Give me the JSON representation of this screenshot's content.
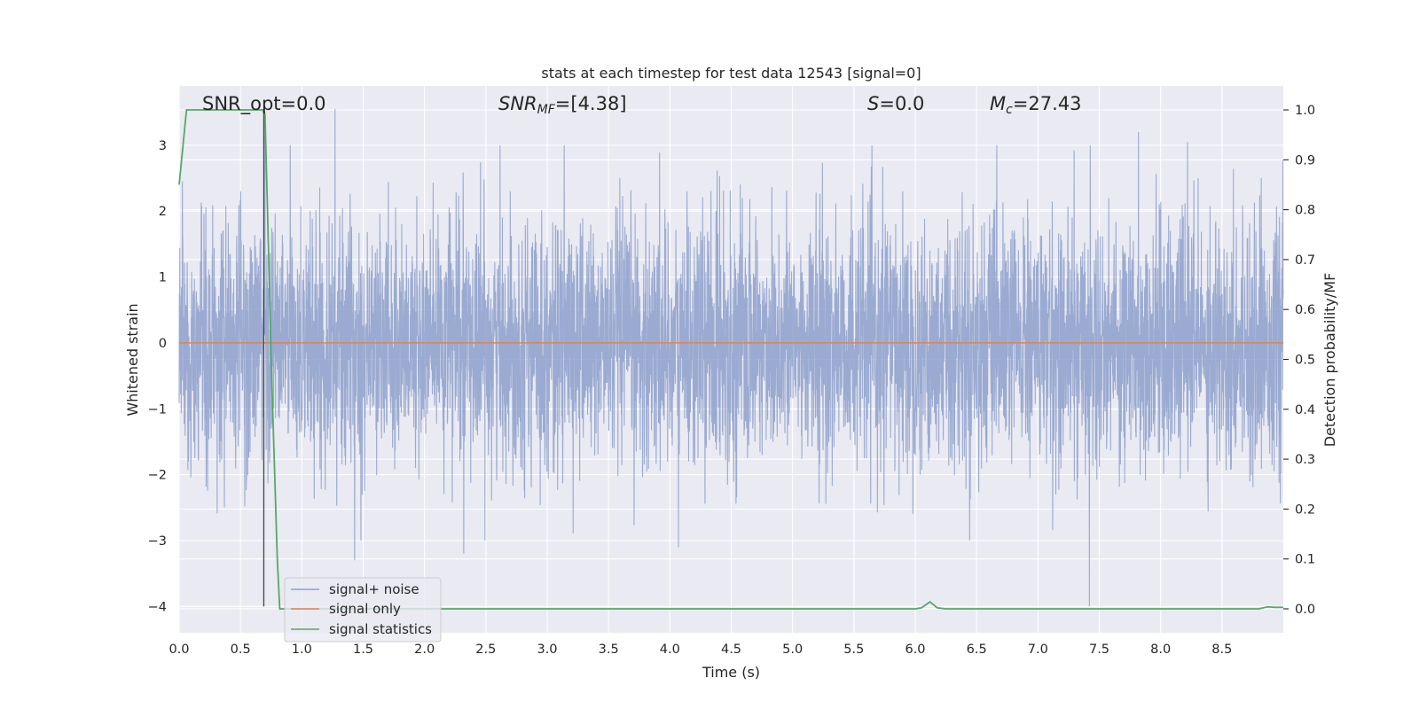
{
  "chart_data": {
    "type": "line",
    "title": "stats at each timestep for test data 12543 [signal=0]",
    "xlabel": "Time (s)",
    "ylabel": "Whitened strain",
    "y2label": "Detection probability/MF",
    "xlim": [
      0.0,
      9.0
    ],
    "ylim": [
      -4.4,
      3.9
    ],
    "y2lim": [
      -0.048,
      1.048
    ],
    "grid": true,
    "x_ticks": [
      "0.0",
      "0.5",
      "1.0",
      "1.5",
      "2.0",
      "2.5",
      "3.0",
      "3.5",
      "4.0",
      "4.5",
      "5.0",
      "5.5",
      "6.0",
      "6.5",
      "7.0",
      "7.5",
      "8.0",
      "8.5"
    ],
    "y_ticks": [
      "3",
      "2",
      "1",
      "0",
      "−1",
      "−2",
      "−3",
      "−4"
    ],
    "y2_ticks": [
      "1.0",
      "0.9",
      "0.8",
      "0.7",
      "0.6",
      "0.5",
      "0.4",
      "0.3",
      "0.2",
      "0.1",
      "0.0"
    ],
    "annotations": {
      "snr_opt": "SNR_opt=0.0",
      "snr_mf_var": "SNR",
      "snr_mf_sub": "MF",
      "snr_mf_val": "=[4.38]",
      "s_var": "S",
      "s_val": "=0.0",
      "mc_var": "M",
      "mc_sub": "c",
      "mc_val": "=27.43"
    },
    "legend": {
      "placement": "lower-left",
      "entries": [
        "signal+ noise",
        "signal only",
        "signal statistics"
      ]
    },
    "colors": {
      "signal_noise": "#8c9fcb",
      "signal_only": "#dd8452",
      "signal_statistics": "#55a868",
      "axes_bg": "#eaeaf2",
      "grid": "#ffffff",
      "vline": "#444444"
    },
    "series": [
      {
        "name": "signal+ noise",
        "axis": "left",
        "description_envelope": {
          "x_range": [
            0.0,
            9.0
          ],
          "typical_band": [
            -1.5,
            1.5
          ],
          "notable_peaks": [
            [
              0.7,
              3.5
            ],
            [
              1.27,
              3.55
            ],
            [
              7.82,
              3.2
            ],
            [
              8.22,
              3.05
            ]
          ],
          "notable_troughs": [
            [
              1.43,
              -3.3
            ],
            [
              7.42,
              -4.0
            ],
            [
              4.07,
              -3.1
            ],
            [
              2.32,
              -3.2
            ]
          ]
        }
      },
      {
        "name": "signal only",
        "axis": "left",
        "x": [
          0.0,
          9.0
        ],
        "values": [
          0.0,
          0.0
        ]
      },
      {
        "name": "signal statistics",
        "axis": "right",
        "x": [
          0.0,
          0.06,
          0.1,
          0.2,
          0.5,
          0.68,
          0.7,
          0.72,
          0.75,
          0.8,
          0.82,
          6.0,
          6.05,
          6.12,
          6.18,
          6.25,
          8.8,
          8.87,
          8.93,
          9.0
        ],
        "values": [
          0.85,
          1.0,
          1.0,
          1.0,
          1.0,
          1.0,
          0.99,
          0.8,
          0.5,
          0.1,
          0.0,
          0.0,
          0.002,
          0.014,
          0.002,
          0.0,
          0.0,
          0.004,
          0.003,
          0.003
        ]
      }
    ],
    "vline_x": 0.69
  }
}
